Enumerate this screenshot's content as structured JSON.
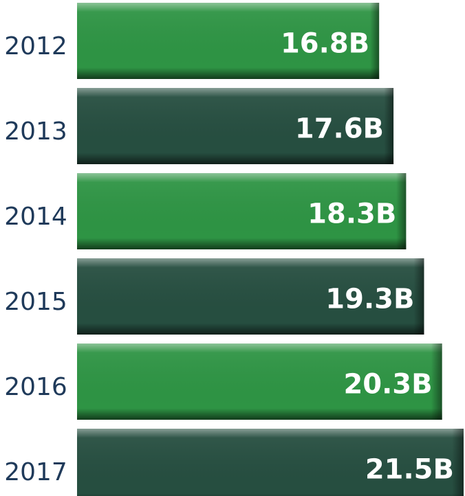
{
  "chart_data": {
    "type": "hbar",
    "categories": [
      "2012",
      "2013",
      "2014",
      "2015",
      "2016",
      "2017"
    ],
    "values": [
      16.8,
      17.6,
      18.3,
      19.3,
      20.3,
      21.5
    ],
    "value_labels": [
      "16.8B",
      "17.6B",
      "18.3B",
      "19.3B",
      "20.3B",
      "21.5B"
    ],
    "colors": [
      "#2e9444",
      "#264e40",
      "#2e9444",
      "#264e40",
      "#2e9444",
      "#264e40"
    ]
  }
}
